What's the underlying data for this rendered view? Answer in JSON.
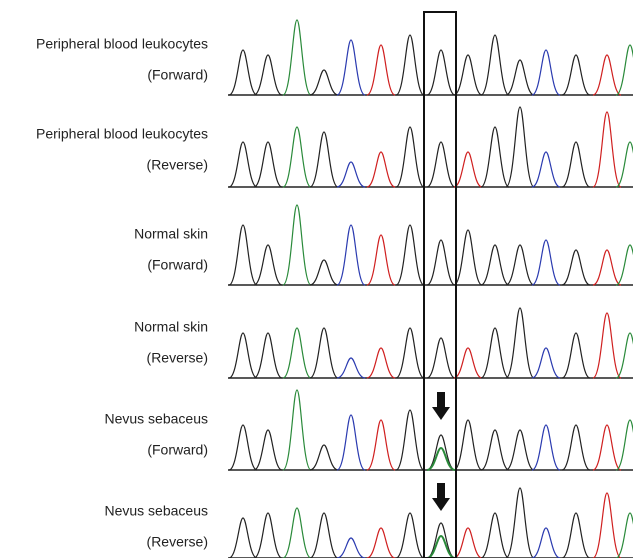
{
  "rows": [
    {
      "name": "Peripheral blood leukocytes",
      "direction": "(Forward)"
    },
    {
      "name": "Peripheral blood leukocytes",
      "direction": "(Reverse)"
    },
    {
      "name": "Normal skin",
      "direction": "(Forward)"
    },
    {
      "name": "Normal skin",
      "direction": "(Reverse)"
    },
    {
      "name": "Nevus sebaceus",
      "direction": "(Forward)"
    },
    {
      "name": "Nevus sebaceus",
      "direction": "(Reverse)"
    }
  ]
}
